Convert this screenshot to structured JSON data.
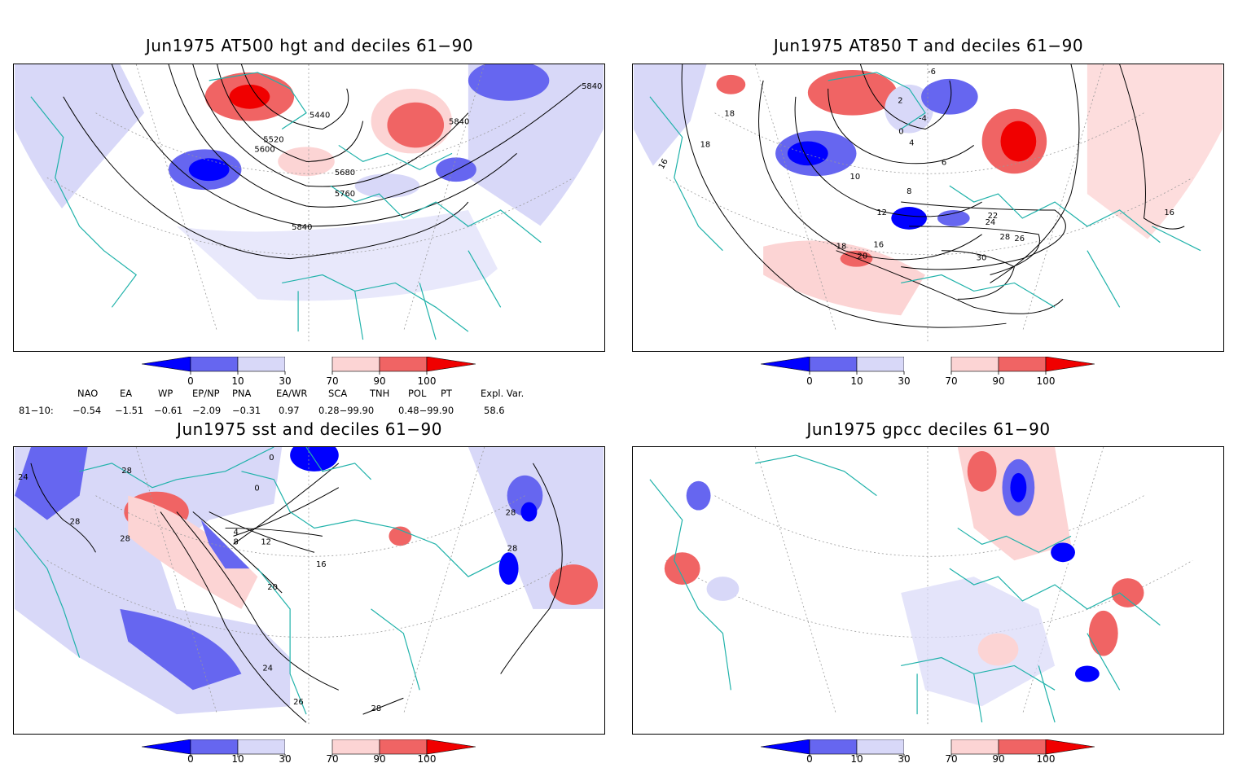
{
  "panels": [
    {
      "title": "Jun1975 AT500 hgt and deciles 61−90",
      "contour_labels": [
        "5440",
        "5520",
        "5600",
        "5680",
        "5760",
        "5840",
        "5840",
        "5840"
      ]
    },
    {
      "title": "Jun1975 AT850 T and deciles 61−90",
      "contour_labels": [
        "18",
        "18",
        "16",
        "10",
        "12",
        "16",
        "18",
        "20",
        "22",
        "24",
        "26",
        "28",
        "30",
        "2",
        "4",
        "6",
        "8",
        "0",
        "-4",
        "-6",
        "16"
      ]
    },
    {
      "title": "Jun1975 sst and deciles 61−90",
      "contour_labels": [
        "24",
        "28",
        "28",
        "28",
        "0",
        "0",
        "4",
        "8",
        "12",
        "16",
        "20",
        "24",
        "26",
        "28",
        "28",
        "28"
      ]
    },
    {
      "title": "Jun1975 gpcc deciles 61−90",
      "contour_labels": []
    }
  ],
  "colorbar": {
    "ticks": [
      "0",
      "10",
      "30",
      "70",
      "90",
      "100"
    ],
    "colors": [
      "#0000ff",
      "#6666f0",
      "#d8d8f8",
      "#ffffff",
      "#fcd4d4",
      "#f06464",
      "#f00000"
    ]
  },
  "teleconnections": {
    "period_label": "81−10:",
    "headers": [
      "NAO",
      "EA",
      "WP",
      "EP/NP",
      "PNA",
      "EA/WR",
      "SCA",
      "TNH",
      "POL",
      "PT",
      "Expl. Var."
    ],
    "values": [
      "−0.54",
      "−1.51",
      "−0.61",
      "−2.09",
      "−0.31",
      "0.97",
      "0.28−99.90",
      "",
      "0.48−99.90",
      "",
      "58.6"
    ]
  },
  "map_colors": {
    "coast": "#20b2aa",
    "contour": "#000000",
    "grid": "#999999"
  }
}
